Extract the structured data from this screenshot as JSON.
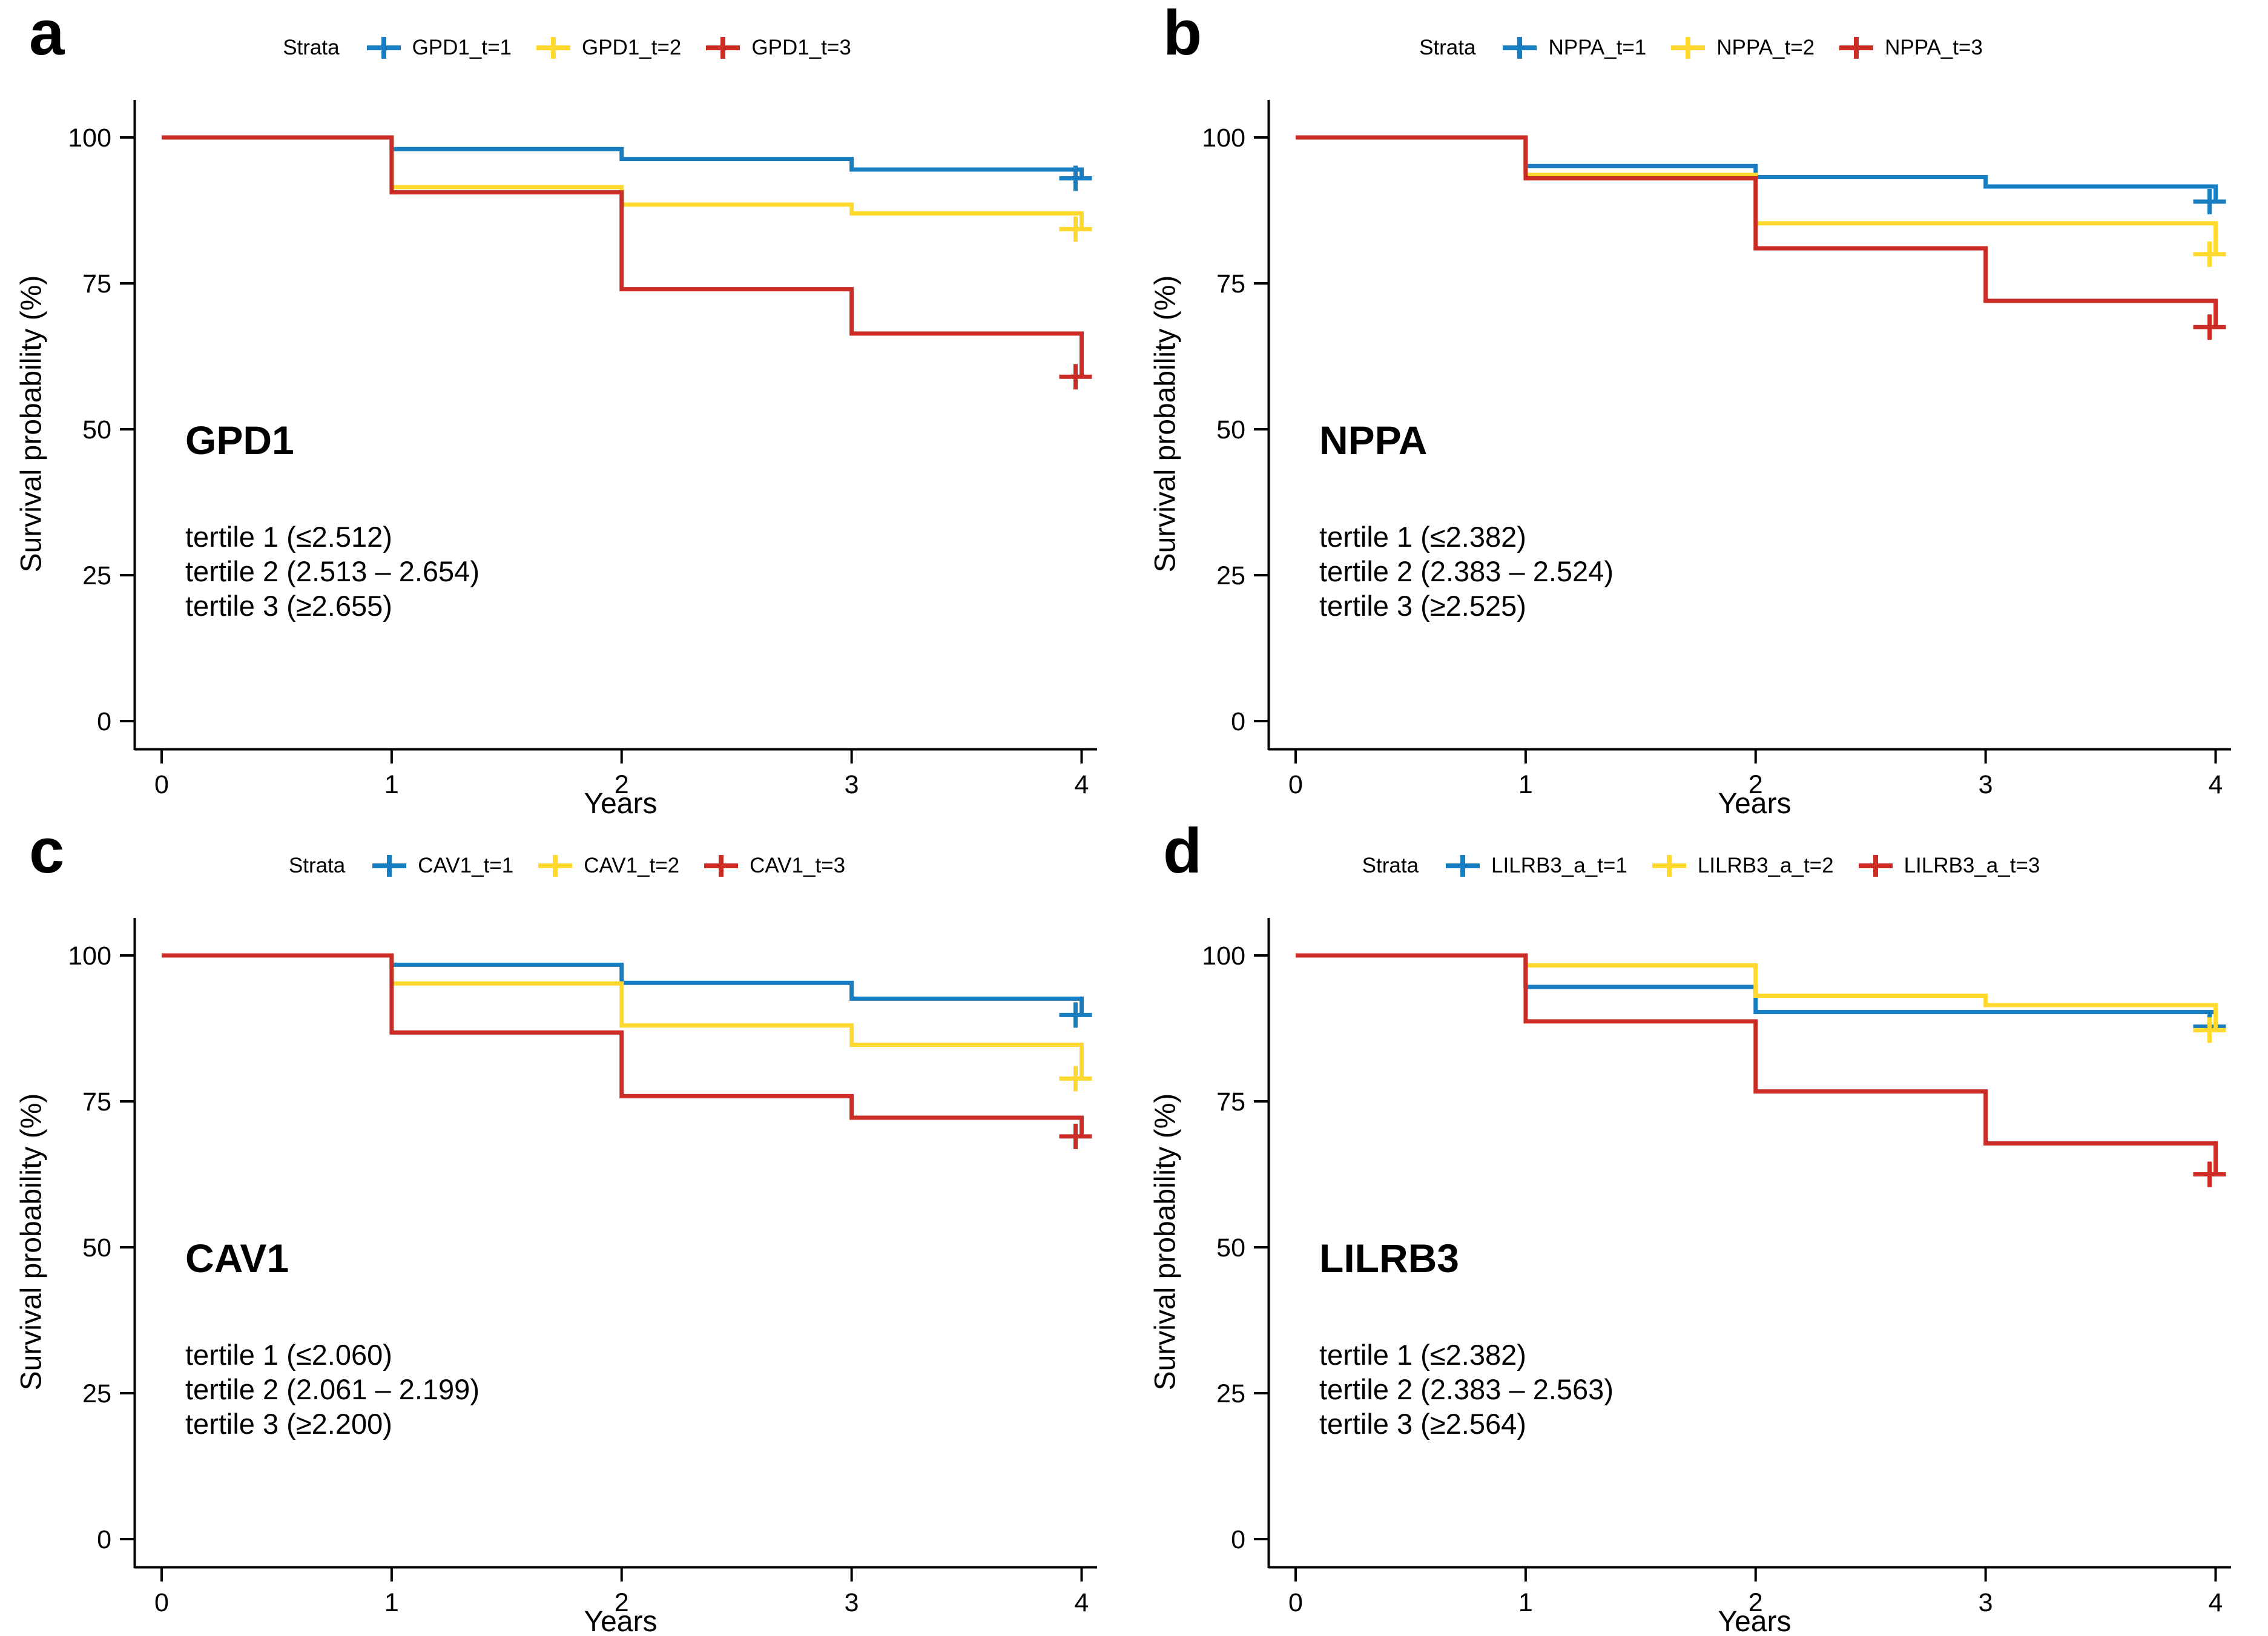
{
  "figure": {
    "background": "#FFFFFF"
  },
  "colors": {
    "blue": "#187DC1",
    "yellow": "#FFD92F",
    "red": "#CB2D26"
  },
  "chart_data": [
    {
      "type": "line",
      "letter": "a",
      "gene": "GPD1",
      "legend_title": "Strata",
      "xlabel": "Years",
      "ylabel": "Survival probability (%)",
      "x_ticks": [
        0,
        1,
        2,
        3,
        4
      ],
      "y_ticks": [
        100,
        75,
        50,
        25,
        0
      ],
      "xlim": [
        0,
        4
      ],
      "ylim": [
        0,
        100
      ],
      "grid": "off",
      "legend_position": "top",
      "tertile_lines": [
        "tertile 1 (≤2.512)",
        "tertile 2 (2.513 – 2.654)",
        "tertile 3 (≥2.655)"
      ],
      "series": [
        {
          "name": "GPD1_t=1",
          "color_key": "blue",
          "steps": [
            [
              0,
              100
            ],
            [
              1,
              98.0
            ],
            [
              2,
              96.3
            ],
            [
              3,
              94.5
            ],
            [
              4,
              93.0
            ]
          ],
          "censor": [
            4,
            93.0
          ]
        },
        {
          "name": "GPD1_t=2",
          "color_key": "yellow",
          "steps": [
            [
              0,
              100
            ],
            [
              1,
              91.5
            ],
            [
              2,
              88.5
            ],
            [
              3,
              87.0
            ],
            [
              4,
              84.3
            ]
          ],
          "censor": [
            4,
            84.3
          ]
        },
        {
          "name": "GPD1_t=3",
          "color_key": "red",
          "steps": [
            [
              0,
              100
            ],
            [
              1,
              90.6
            ],
            [
              2,
              74.0
            ],
            [
              3,
              66.4
            ],
            [
              4,
              59.0
            ]
          ],
          "censor": [
            4,
            59.0
          ]
        }
      ]
    },
    {
      "type": "line",
      "letter": "b",
      "gene": "NPPA",
      "legend_title": "Strata",
      "xlabel": "Years",
      "ylabel": "Survival probability (%)",
      "x_ticks": [
        0,
        1,
        2,
        3,
        4
      ],
      "y_ticks": [
        100,
        75,
        50,
        25,
        0
      ],
      "xlim": [
        0,
        4
      ],
      "ylim": [
        0,
        100
      ],
      "grid": "off",
      "legend_position": "top",
      "tertile_lines": [
        "tertile 1 (≤2.382)",
        "tertile 2 (2.383 – 2.524)",
        "tertile 3 (≥2.525)"
      ],
      "series": [
        {
          "name": "NPPA_t=1",
          "color_key": "blue",
          "steps": [
            [
              0,
              100
            ],
            [
              1,
              95.1
            ],
            [
              2,
              93.2
            ],
            [
              3,
              91.6
            ],
            [
              4,
              89.0
            ]
          ],
          "censor": [
            4,
            89.0
          ]
        },
        {
          "name": "NPPA_t=2",
          "color_key": "yellow",
          "steps": [
            [
              0,
              100
            ],
            [
              1,
              93.6
            ],
            [
              2,
              85.3
            ],
            [
              3,
              85.3
            ],
            [
              4,
              80.0
            ]
          ],
          "censor": [
            4,
            80.0
          ]
        },
        {
          "name": "NPPA_t=3",
          "color_key": "red",
          "steps": [
            [
              0,
              100
            ],
            [
              1,
              93.0
            ],
            [
              2,
              81.0
            ],
            [
              3,
              72.0
            ],
            [
              4,
              67.5
            ]
          ],
          "censor": [
            4,
            67.5
          ]
        }
      ]
    },
    {
      "type": "line",
      "letter": "c",
      "gene": "CAV1",
      "legend_title": "Strata",
      "xlabel": "Years",
      "ylabel": "Survival probability (%)",
      "x_ticks": [
        0,
        1,
        2,
        3,
        4
      ],
      "y_ticks": [
        100,
        75,
        50,
        25,
        0
      ],
      "xlim": [
        0,
        4
      ],
      "ylim": [
        0,
        100
      ],
      "grid": "off",
      "legend_position": "top",
      "tertile_lines": [
        "tertile 1 (≤2.060)",
        "tertile 2 (2.061 – 2.199)",
        "tertile 3 (≥2.200)"
      ],
      "series": [
        {
          "name": "CAV1_t=1",
          "color_key": "blue",
          "steps": [
            [
              0,
              100
            ],
            [
              1,
              98.4
            ],
            [
              2,
              95.3
            ],
            [
              3,
              92.6
            ],
            [
              4,
              89.8
            ]
          ],
          "censor": [
            4,
            89.8
          ]
        },
        {
          "name": "CAV1_t=2",
          "color_key": "yellow",
          "steps": [
            [
              0,
              100
            ],
            [
              1,
              95.2
            ],
            [
              2,
              88.0
            ],
            [
              3,
              84.7
            ],
            [
              4,
              78.9
            ]
          ],
          "censor": [
            4,
            78.9
          ]
        },
        {
          "name": "CAV1_t=3",
          "color_key": "red",
          "steps": [
            [
              0,
              100
            ],
            [
              1,
              86.8
            ],
            [
              2,
              75.9
            ],
            [
              3,
              72.2
            ],
            [
              4,
              69.0
            ]
          ],
          "censor": [
            4,
            69.0
          ]
        }
      ]
    },
    {
      "type": "line",
      "letter": "d",
      "gene": "LILRB3",
      "legend_title": "Strata",
      "xlabel": "Years",
      "ylabel": "Survival probability (%)",
      "x_ticks": [
        0,
        1,
        2,
        3,
        4
      ],
      "y_ticks": [
        100,
        75,
        50,
        25,
        0
      ],
      "xlim": [
        0,
        4
      ],
      "ylim": [
        0,
        100
      ],
      "grid": "off",
      "legend_position": "top",
      "tertile_lines": [
        "tertile 1 (≤2.382)",
        "tertile 2 (2.383 – 2.563)",
        "tertile 3 (≥2.564)"
      ],
      "series": [
        {
          "name": "LILRB3_a_t=1",
          "color_key": "blue",
          "steps": [
            [
              0,
              100
            ],
            [
              1,
              94.6
            ],
            [
              2,
              90.3
            ],
            [
              3,
              90.3
            ],
            [
              4,
              87.8
            ]
          ],
          "censor": [
            4,
            87.8
          ]
        },
        {
          "name": "LILRB3_a_t=2",
          "color_key": "yellow",
          "steps": [
            [
              0,
              100
            ],
            [
              1,
              98.3
            ],
            [
              2,
              93.1
            ],
            [
              3,
              91.5
            ],
            [
              4,
              87.2
            ]
          ],
          "censor": [
            4,
            87.2
          ]
        },
        {
          "name": "LILRB3_a_t=3",
          "color_key": "red",
          "steps": [
            [
              0,
              100
            ],
            [
              1,
              88.7
            ],
            [
              2,
              76.7
            ],
            [
              3,
              67.8
            ],
            [
              4,
              62.5
            ]
          ],
          "censor": [
            4,
            62.5
          ]
        }
      ]
    }
  ]
}
